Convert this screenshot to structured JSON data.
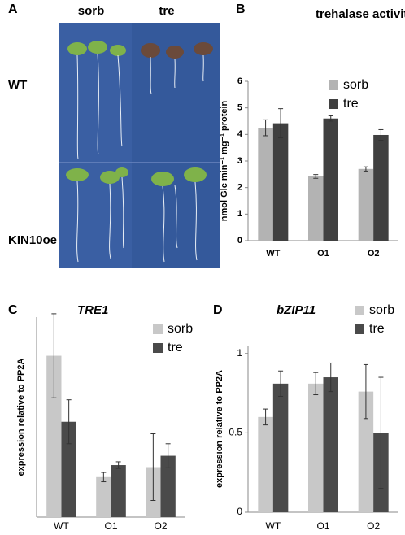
{
  "figure": {
    "panel_a": {
      "letter": "A",
      "columns": [
        "sorb",
        "tre"
      ],
      "rows": [
        "WT",
        "KIN10oe"
      ]
    }
  },
  "chart_data": [
    {
      "panel": "B",
      "type": "bar",
      "title": "trehalase activity",
      "y_label": "nmol Glc min⁻¹ mg⁻¹ protein",
      "categories": [
        "WT",
        "O1",
        "O2"
      ],
      "series": [
        {
          "name": "sorb",
          "color": "#b3b3b3",
          "values": [
            4.25,
            2.42,
            2.7
          ],
          "errors": [
            0.3,
            0.07,
            0.08
          ]
        },
        {
          "name": "tre",
          "color": "#404040",
          "values": [
            4.42,
            4.6,
            3.98
          ],
          "errors": [
            0.55,
            0.1,
            0.2
          ]
        }
      ],
      "ylim": [
        0,
        6
      ],
      "yticks": [
        0,
        1,
        2,
        3,
        4,
        5,
        6
      ],
      "legend": "top-right"
    },
    {
      "panel": "C",
      "type": "bar",
      "title": "TRE1",
      "y_label": "expression relative to PP2A",
      "categories": [
        "WT",
        "O1",
        "O2"
      ],
      "series": [
        {
          "name": "sorb",
          "color": "#c8c8c8",
          "values": [
            2.42,
            0.6,
            0.75
          ],
          "errors": [
            0.63,
            0.07,
            0.5
          ]
        },
        {
          "name": "tre",
          "color": "#4a4a4a",
          "values": [
            1.43,
            0.78,
            0.92
          ],
          "errors": [
            0.33,
            0.05,
            0.18
          ]
        }
      ],
      "ylim": [
        0,
        3
      ],
      "yticks": [],
      "legend": "top-right"
    },
    {
      "panel": "D",
      "type": "bar",
      "title": "bZIP11",
      "y_label": "expression relative to PP2A",
      "categories": [
        "WT",
        "O1",
        "O2"
      ],
      "series": [
        {
          "name": "sorb",
          "color": "#c8c8c8",
          "values": [
            0.6,
            0.81,
            0.76
          ],
          "errors": [
            0.05,
            0.07,
            0.17
          ]
        },
        {
          "name": "tre",
          "color": "#4a4a4a",
          "values": [
            0.81,
            0.85,
            0.5
          ],
          "errors": [
            0.08,
            0.09,
            0.35
          ]
        }
      ],
      "ylim": [
        0,
        1.05
      ],
      "yticks": [
        0,
        0.5,
        1
      ],
      "legend": "top-right"
    }
  ]
}
